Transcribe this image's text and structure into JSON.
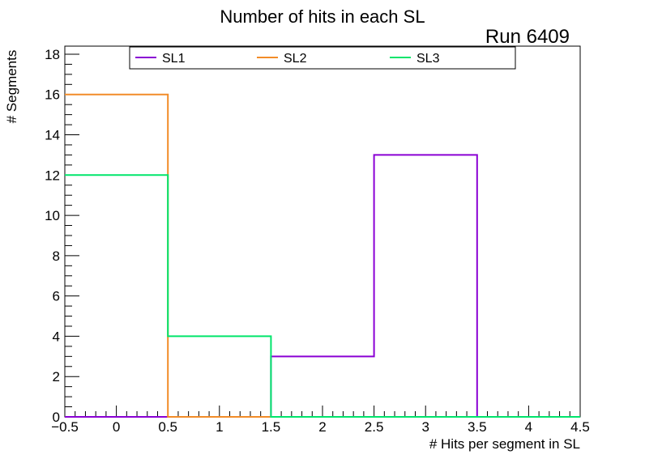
{
  "title": "Number of hits in each SL",
  "run_label": "Run 6409",
  "chart_data": {
    "type": "histogram",
    "title": "Number of hits in each SL",
    "xlabel": "# Hits per segment in SL",
    "ylabel": "# Segments",
    "xlim": [
      -0.5,
      4.5
    ],
    "ylim": [
      0,
      18.4
    ],
    "x_ticks": [
      -0.5,
      0,
      0.5,
      1,
      1.5,
      2,
      2.5,
      3,
      3.5,
      4,
      4.5
    ],
    "x_tick_labels": [
      "−0.5",
      "0",
      "0.5",
      "1",
      "1.5",
      "2",
      "2.5",
      "3",
      "3.5",
      "4",
      "4.5"
    ],
    "y_ticks": [
      0,
      2,
      4,
      6,
      8,
      10,
      12,
      14,
      16,
      18
    ],
    "y_tick_labels": [
      "0",
      "2",
      "4",
      "6",
      "8",
      "10",
      "12",
      "14",
      "16",
      "18"
    ],
    "bin_edges": [
      -0.5,
      0.5,
      1.5,
      2.5,
      3.5,
      4.5
    ],
    "series": [
      {
        "name": "SL1",
        "color": "#8a00d4",
        "values": [
          0,
          0,
          3,
          13,
          0
        ]
      },
      {
        "name": "SL2",
        "color": "#f28c28",
        "values": [
          16,
          0,
          0,
          0,
          0
        ]
      },
      {
        "name": "SL3",
        "color": "#00e56b",
        "values": [
          12,
          4,
          0,
          0,
          0
        ]
      }
    ],
    "legend_position": "top",
    "grid": false
  }
}
